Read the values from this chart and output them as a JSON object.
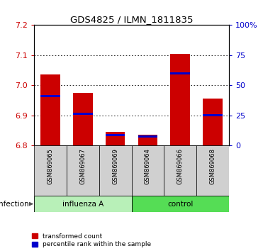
{
  "title": "GDS4825 / ILMN_1811835",
  "samples": [
    "GSM869065",
    "GSM869067",
    "GSM869069",
    "GSM869064",
    "GSM869066",
    "GSM869068"
  ],
  "red_values": [
    7.035,
    6.975,
    6.845,
    6.835,
    7.105,
    6.955
  ],
  "blue_values": [
    6.965,
    6.905,
    6.835,
    6.831,
    7.04,
    6.9
  ],
  "baseline": 6.8,
  "ylim_left": [
    6.8,
    7.2
  ],
  "ylim_right": [
    0,
    100
  ],
  "yticks_left": [
    6.8,
    6.9,
    7.0,
    7.1,
    7.2
  ],
  "yticks_right": [
    0,
    25,
    50,
    75,
    100
  ],
  "ytick_labels_right": [
    "0",
    "25",
    "50",
    "75",
    "100%"
  ],
  "groups": [
    {
      "label": "influenza A",
      "indices": [
        0,
        1,
        2
      ],
      "color": "#b8f0b8"
    },
    {
      "label": "control",
      "indices": [
        3,
        4,
        5
      ],
      "color": "#55dd55"
    }
  ],
  "group_label": "infection",
  "bar_color_red": "#cc0000",
  "bar_color_blue": "#0000cc",
  "bar_width": 0.6,
  "left_tick_color": "#cc0000",
  "right_tick_color": "#0000cc",
  "legend_items": [
    "transformed count",
    "percentile rank within the sample"
  ],
  "blue_bar_height": 0.007
}
